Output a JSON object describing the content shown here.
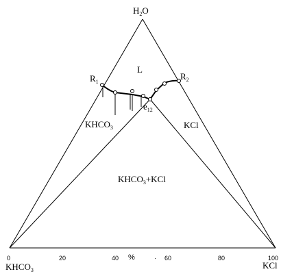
{
  "diagram": {
    "type": "ternary-phase-diagram",
    "vertices": {
      "top": {
        "base": "H",
        "sub": "2",
        "tail": "O"
      },
      "left": {
        "base": "KHCO",
        "sub": "3",
        "tail": ""
      },
      "right": {
        "base": "KCl",
        "sub": "",
        "tail": ""
      }
    },
    "axis_ticks": [
      "0",
      "20",
      "40",
      "60",
      "80",
      "100"
    ],
    "axis_unit": "%",
    "axis_extra": "·",
    "regions": {
      "liquid": "L",
      "khco3_field": {
        "base": "KHCO",
        "sub": "3",
        "tail": ""
      },
      "kcl_field": "KCl",
      "mixed_field": {
        "base": "KHCO",
        "sub": "3",
        "tail": "+KCl"
      }
    },
    "points": {
      "R1": {
        "base": "R",
        "sub": "1"
      },
      "R2": {
        "base": "R",
        "sub": "2"
      },
      "e12": {
        "base": "e",
        "sub": "12"
      }
    }
  }
}
